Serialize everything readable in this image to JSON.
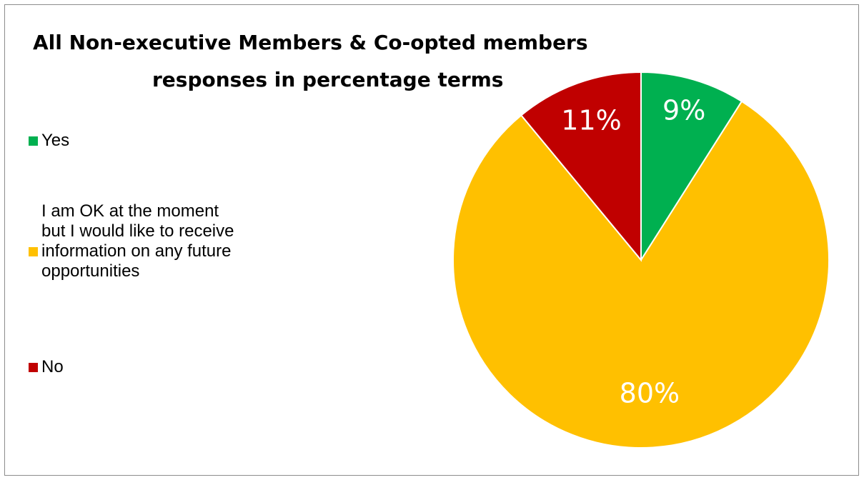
{
  "chart_data": {
    "type": "pie",
    "title_lines": [
      "All Non-executive Members & Co-opted members",
      "responses in percentage terms"
    ],
    "legend": [
      {
        "label": "Yes",
        "color": "#00b050"
      },
      {
        "label": "I am OK at the moment\nbut I would like to receive\ninformation on any future\nopportunities",
        "color": "#ffc000"
      },
      {
        "label": "No",
        "color": "#c00000"
      }
    ],
    "legend_position": "left",
    "slices": [
      {
        "label": "Yes",
        "value": 9,
        "display": "9%",
        "color": "#00b050"
      },
      {
        "label": "I am OK at the moment but I would like to receive information on any future opportunities",
        "value": 80,
        "display": "80%",
        "color": "#ffc000"
      },
      {
        "label": "No",
        "value": 11,
        "display": "11%",
        "color": "#c00000"
      }
    ]
  }
}
